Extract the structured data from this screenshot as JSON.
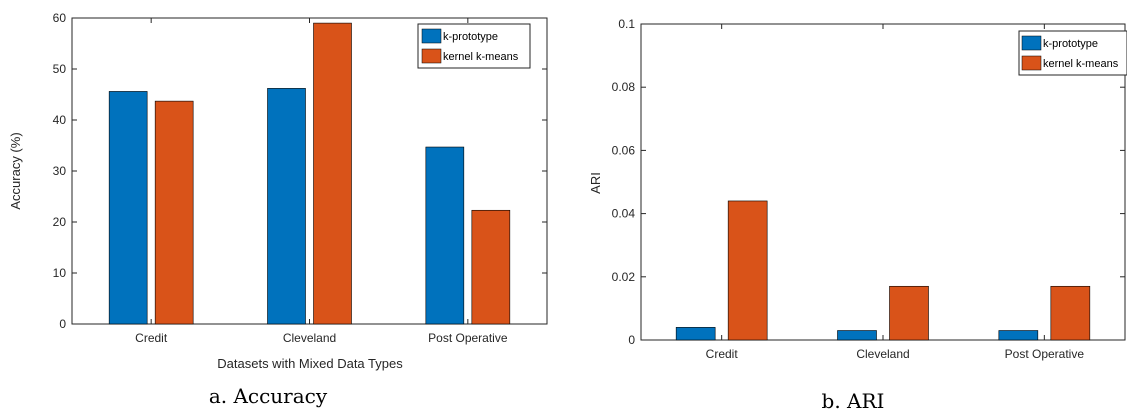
{
  "chart_data": [
    {
      "type": "bar",
      "caption": "a. Accuracy",
      "categories": [
        "Credit",
        "Cleveland",
        "Post Operative"
      ],
      "series": [
        {
          "name": "k-prototype",
          "values": [
            45.6,
            46.2,
            34.7
          ]
        },
        {
          "name": "kernel k-means",
          "values": [
            43.7,
            59.0,
            22.3
          ]
        }
      ],
      "xlabel": "Datasets with Mixed Data Types",
      "ylabel": "Accuracy (%)",
      "ylim": [
        0,
        60
      ],
      "yticks": [
        "0",
        "10",
        "20",
        "30",
        "40",
        "50",
        "60"
      ],
      "grid": false,
      "legend_position": "top-right"
    },
    {
      "type": "bar",
      "caption": "b. ARI",
      "categories": [
        "Credit",
        "Cleveland",
        "Post Operative"
      ],
      "series": [
        {
          "name": "k-prototype",
          "values": [
            0.004,
            0.003,
            0.003
          ]
        },
        {
          "name": "kernel k-means",
          "values": [
            0.044,
            0.017,
            0.017
          ]
        }
      ],
      "xlabel": "",
      "ylabel": "ARI",
      "ylim": [
        0,
        0.1
      ],
      "yticks": [
        "0",
        "0.02",
        "0.04",
        "0.06",
        "0.08",
        "0.1"
      ],
      "grid": false,
      "legend_position": "top-right"
    }
  ],
  "colors": {
    "k_prototype": "#0072bd",
    "kernel_kmeans": "#d95319",
    "axis": "#262626"
  }
}
